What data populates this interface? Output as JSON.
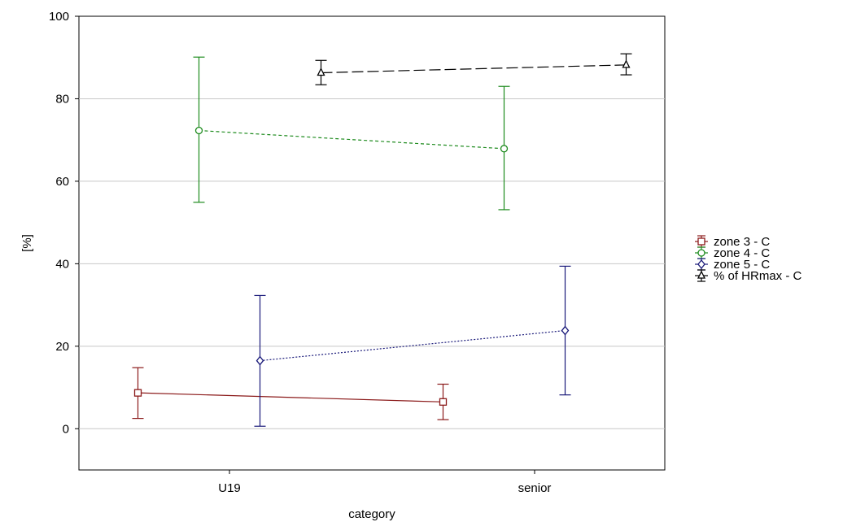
{
  "chart_data": {
    "type": "line",
    "xlabel": "category",
    "ylabel": "[%]",
    "categories": [
      "U19",
      "senior"
    ],
    "ylim": [
      -10,
      100
    ],
    "yticks": [
      0,
      20,
      40,
      60,
      80,
      100
    ],
    "grid": "horizontal",
    "legend_position": "right",
    "series": [
      {
        "name": "zone 3 - C",
        "color": "#8b1a1a",
        "marker": "square",
        "line": "solid",
        "offset": -1.5,
        "values": [
          8.7,
          6.5
        ],
        "lower": [
          2.5,
          2.2
        ],
        "upper": [
          14.8,
          10.8
        ]
      },
      {
        "name": "zone 4 - C",
        "color": "#1e8b1e",
        "marker": "circle",
        "line": "dashed",
        "offset": -0.5,
        "values": [
          72.3,
          67.9
        ],
        "lower": [
          54.9,
          53.1
        ],
        "upper": [
          90.1,
          83.0
        ]
      },
      {
        "name": "zone 5 - C",
        "color": "#1a1a7a",
        "marker": "diamond",
        "line": "dotted",
        "offset": 0.5,
        "values": [
          16.5,
          23.8
        ],
        "lower": [
          0.6,
          8.2
        ],
        "upper": [
          32.3,
          39.4
        ]
      },
      {
        "name": "% of HRmax - C",
        "color": "#000000",
        "marker": "triangle",
        "line": "longdash",
        "offset": 1.5,
        "values": [
          86.3,
          88.2
        ],
        "lower": [
          83.4,
          85.8
        ],
        "upper": [
          89.3,
          90.9
        ]
      }
    ]
  }
}
